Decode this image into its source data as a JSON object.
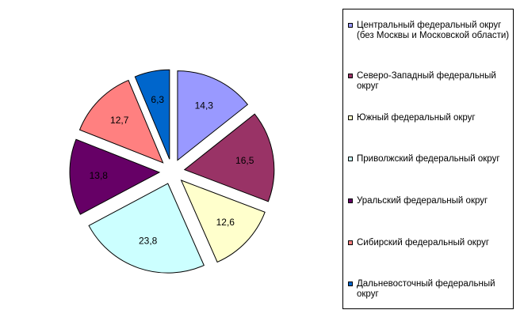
{
  "chart_data": {
    "type": "pie",
    "exploded": true,
    "legend_position": "right",
    "categories": [
      "Центральный федеральный округ (без Москвы и Московской области)",
      "Северо-Западный федеральный округ",
      "Южный федеральный округ",
      "Приволжский федеральный округ",
      "Уральский федеральный округ",
      "Сибирский федеральный округ",
      "Дальневосточный федеральный округ"
    ],
    "values": [
      14.3,
      16.5,
      12.6,
      23.8,
      13.8,
      12.7,
      6.3
    ],
    "value_labels": [
      "14,3",
      "16,5",
      "12,6",
      "23,8",
      "13,8",
      "12,7",
      "6,3"
    ],
    "colors": [
      "#9999ff",
      "#993366",
      "#ffffcc",
      "#ccffff",
      "#660066",
      "#ff8080",
      "#0066cc"
    ]
  }
}
